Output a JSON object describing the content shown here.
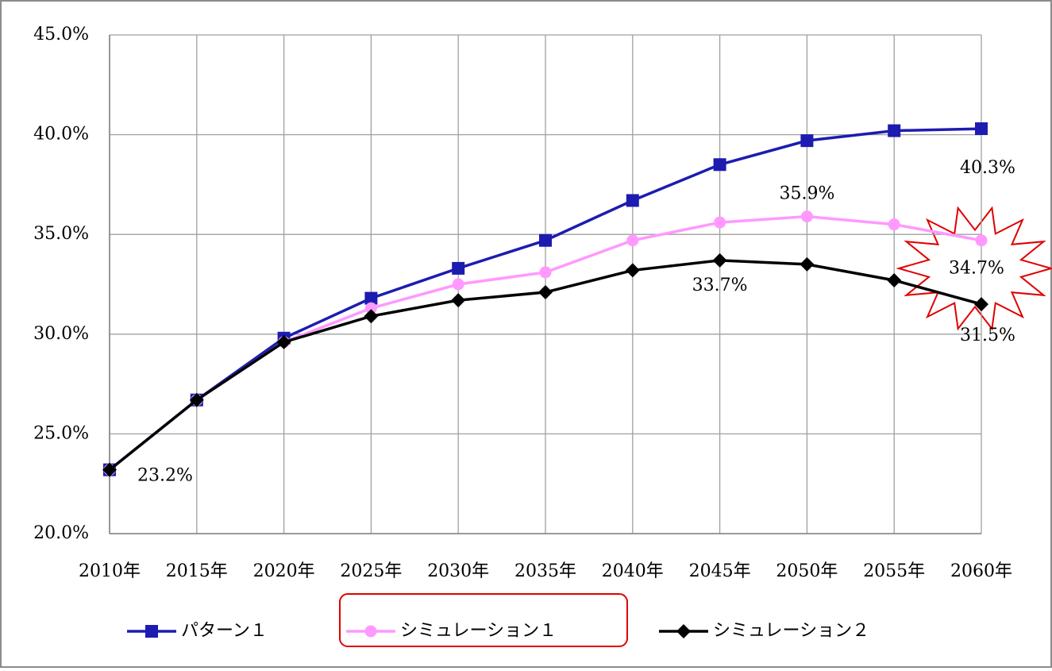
{
  "chart_data": {
    "type": "line",
    "categories": [
      "2010年",
      "2015年",
      "2020年",
      "2025年",
      "2030年",
      "2035年",
      "2040年",
      "2045年",
      "2050年",
      "2055年",
      "2060年"
    ],
    "ylim": [
      20,
      45
    ],
    "yticks": [
      {
        "value": 20,
        "label": "20.0%"
      },
      {
        "value": 25,
        "label": "25.0%"
      },
      {
        "value": 30,
        "label": "30.0%"
      },
      {
        "value": 35,
        "label": "35.0%"
      },
      {
        "value": 40,
        "label": "40.0%"
      },
      {
        "value": 45,
        "label": "45.0%"
      }
    ],
    "grid": true,
    "legend": "bottom",
    "series": [
      {
        "name": "パターン１",
        "color": "#1c1cb0",
        "marker": "square",
        "values": [
          23.2,
          26.7,
          29.8,
          31.8,
          33.3,
          34.7,
          36.7,
          38.5,
          39.7,
          40.2,
          40.3
        ],
        "value_labels": [
          null,
          null,
          null,
          null,
          null,
          null,
          null,
          null,
          null,
          null,
          "40.3%"
        ]
      },
      {
        "name": "シミュレーション１",
        "color": "#ff99ff",
        "marker": "circle",
        "values": [
          23.2,
          26.7,
          29.6,
          31.3,
          32.5,
          33.1,
          34.7,
          35.6,
          35.9,
          35.5,
          34.7
        ],
        "value_labels": [
          null,
          null,
          null,
          null,
          null,
          null,
          null,
          null,
          "35.9%",
          null,
          "34.7%"
        ]
      },
      {
        "name": "シミュレーション２",
        "color": "#000000",
        "marker": "diamond",
        "values": [
          23.2,
          26.7,
          29.6,
          30.9,
          31.7,
          32.1,
          33.2,
          33.7,
          33.5,
          32.7,
          31.5
        ],
        "value_labels": [
          "23.2%",
          null,
          null,
          null,
          null,
          null,
          null,
          "33.7%",
          null,
          null,
          "31.5%"
        ]
      }
    ]
  }
}
